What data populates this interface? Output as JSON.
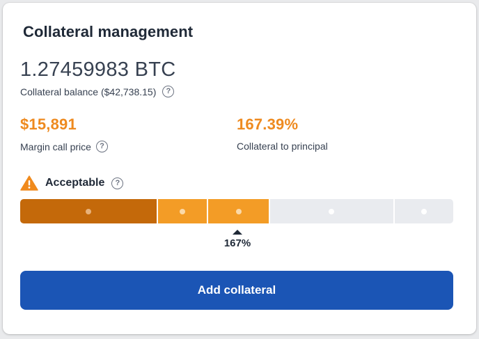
{
  "card": {
    "title": "Collateral management"
  },
  "balance": {
    "amount": "1.27459983 BTC",
    "label": "Collateral balance ($42,738.15)",
    "help_icon": "help-icon"
  },
  "stats": [
    {
      "value": "$15,891",
      "label": "Margin call price",
      "has_help": true
    },
    {
      "value": "167.39%",
      "label": "Collateral to principal",
      "has_help": false
    }
  ],
  "status": {
    "icon": "warning-icon",
    "label": "Acceptable"
  },
  "gauge": {
    "segments": [
      {
        "weight": 195,
        "color": "#c4690a",
        "dot": "#e8b27a"
      },
      {
        "weight": 70,
        "color": "#f39c26",
        "dot": "#fbd9a8"
      },
      {
        "weight": 87,
        "color": "#f39c26",
        "dot": "#fbd9a8"
      },
      {
        "weight": 176,
        "color": "#e9ebef",
        "dot": "#ffffff"
      },
      {
        "weight": 84,
        "color": "#e9ebef",
        "dot": "#ffffff"
      }
    ],
    "marker_value": "167%"
  },
  "actions": {
    "add_collateral": "Add collateral"
  },
  "colors": {
    "accent_orange": "#ee8a1f",
    "primary_blue": "#1b55b5",
    "warning_orange": "#f08a1d"
  }
}
